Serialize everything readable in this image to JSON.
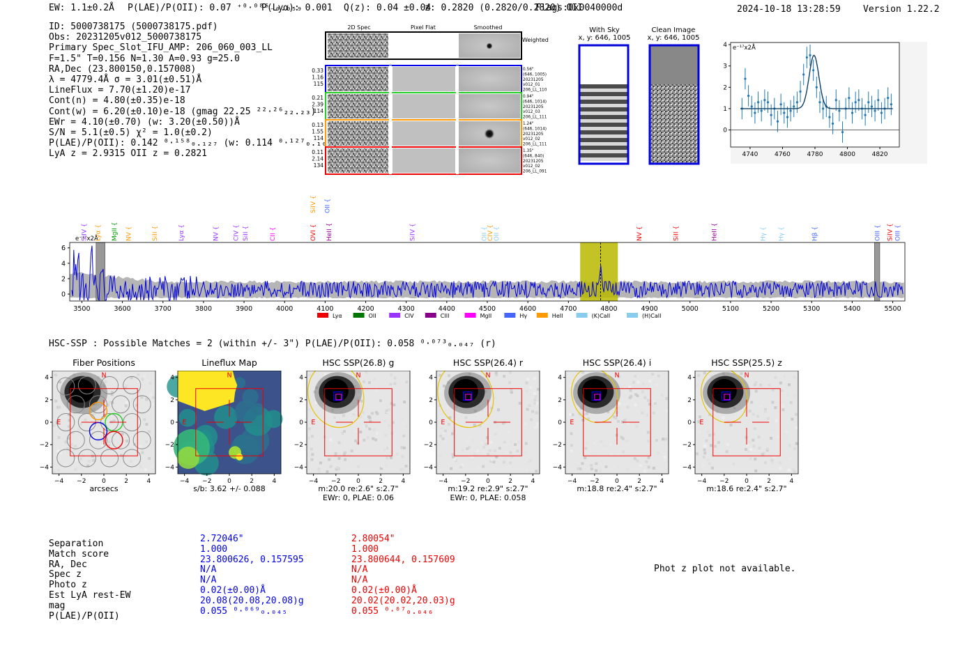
{
  "header": {
    "ew": "EW: 1.1±0.2Å",
    "plae": "P(LAE)/P(OII): 0.07 ⁺⁰·⁰⁸⁶₋₀.₀₅₉",
    "plya": "P(Lyα): 0.001",
    "qz": "Q(z): 0.04 ±0.04",
    "z": "z: 0.2820 (0.2820/0.2820) OII",
    "flags": "Flags:0x0040000d",
    "timestamp": "2024-10-18 13:28:59",
    "version": "Version 1.22.2"
  },
  "info_lines": [
    "ID: 5000738175 (5000738175.pdf)",
    "Obs: 20231205v012_5000738175",
    "Primary Spec_Slot_IFU_AMP: 206_060_003_LL",
    "F=1.5\"  T=0.156  N=1.30  A=0.93  g=25.0",
    "RA,Dec (23.800150,0.157008)",
    "λ = 4779.4Å   σ = 3.01(±0.51)Å",
    "LineFlux = 7.70(±1.20)e-17",
    "Cont(n) = 4.80(±0.35)e-18",
    "Cont(w) = 6.20(±0.10)e-18 (gmag 22.25 ²²·²⁶₂₂.₂₃)",
    "EWr = 4.10(±0.70) (w: 3.20(±0.50))Å",
    "S/N = 5.1(±0.5)  χ² = 1.0(±0.2)",
    "P(LAE)/P(OII): 0.142 ⁰·¹⁵⁸₀.₁₂₇ (w: 0.114 ⁰·¹²⁷₀.₁₀₄)",
    "LyA z = 2.9315   OII z = 0.2821"
  ],
  "cutout_panel": {
    "col_titles": [
      "2D Spec",
      "Pixel Flat",
      "Smoothed"
    ],
    "weighted_sum_label": "Weighted Sum",
    "rows": [
      {
        "left": [
          "0.33",
          "1.16",
          "115"
        ],
        "right": [
          "0.56\"",
          "(646, 1005)",
          "20231205",
          "v012_01",
          "206_LL_110"
        ],
        "color": "#0000ee"
      },
      {
        "left": [
          "0.21",
          "2.39",
          "114"
        ],
        "right": [
          "0.94\"",
          "(646, 1014)",
          "20231205",
          "v012_03",
          "206_LL_111"
        ],
        "color": "#22cc22"
      },
      {
        "left": [
          "0.13",
          "1.55",
          "114"
        ],
        "right": [
          "1.24\"",
          "(646, 1014)",
          "20231205",
          "v012_02",
          "206_LL_111"
        ],
        "color": "#ff9900"
      },
      {
        "left": [
          "0.11",
          "2.14",
          "134"
        ],
        "right": [
          "1.35\"",
          "(646, 840)",
          "20231205",
          "v012_02",
          "206_LL_091"
        ],
        "color": "#ee0000"
      }
    ]
  },
  "sky_panels": {
    "with_sky_title": "With Sky",
    "with_sky_coords": "x, y: 646, 1005",
    "clean_title": "Clean Image",
    "clean_coords": "x, y: 646, 1005"
  },
  "zoom_chart": {
    "chart_data": {
      "type": "line",
      "title": "",
      "ylabel_note": "e⁻¹⁷x2Å",
      "xlim": [
        4728,
        4832
      ],
      "ylim": [
        -0.8,
        4.1
      ],
      "xticks": [
        4740,
        4760,
        4780,
        4800,
        4820
      ],
      "yticks": [
        0,
        1,
        2,
        3,
        4
      ],
      "points_x": [
        4735,
        4737,
        4739,
        4741,
        4743,
        4745,
        4747,
        4749,
        4751,
        4753,
        4755,
        4757,
        4759,
        4761,
        4763,
        4765,
        4767,
        4769,
        4771,
        4773,
        4775,
        4777,
        4779,
        4781,
        4783,
        4785,
        4787,
        4789,
        4791,
        4793,
        4795,
        4797,
        4799,
        4801,
        4803,
        4805,
        4807,
        4809,
        4811,
        4813,
        4815,
        4817,
        4819,
        4821,
        4823,
        4825,
        4827
      ],
      "points_y": [
        1.0,
        2.4,
        1.6,
        1.1,
        0.8,
        1.3,
        0.9,
        1.4,
        1.3,
        0.7,
        1.0,
        0.4,
        1.2,
        0.8,
        0.6,
        0.9,
        1.1,
        1.3,
        1.8,
        2.6,
        3.4,
        3.5,
        2.8,
        2.0,
        1.3,
        1.0,
        1.1,
        0.6,
        0.3,
        1.4,
        0.9,
        -0.1,
        1.0,
        1.5,
        0.8,
        1.3,
        1.4,
        1.0,
        0.7,
        1.3,
        1.1,
        0.9,
        1.4,
        0.8,
        1.0,
        1.5,
        1.2
      ],
      "err": 0.5,
      "fit": {
        "continuum": 1.0,
        "amplitude": 2.5,
        "center": 4779.4,
        "sigma": 3.01
      }
    }
  },
  "spectrum_chart": {
    "chart_data": {
      "type": "line",
      "ylabel_note": "e⁻¹⁷x2Å",
      "xlim": [
        3470,
        5530
      ],
      "ylim": [
        -0.9,
        6.7
      ],
      "xticks": [
        3500,
        3600,
        3700,
        3800,
        3900,
        4000,
        4100,
        4200,
        4300,
        4400,
        4500,
        4600,
        4700,
        4800,
        4900,
        5000,
        5100,
        5200,
        5300,
        5400,
        5500
      ],
      "yticks": [
        0,
        2,
        4,
        6
      ],
      "highlight_range": [
        4729,
        4822
      ],
      "line_center": 4779.4,
      "masked_ranges": [
        [
          3535,
          3557
        ],
        [
          5455,
          5468
        ]
      ],
      "line_labels": [
        {
          "name": "SiIV",
          "w": 3505,
          "color": "#9933ff",
          "row": 0
        },
        {
          "name": "Lyα",
          "w": 3540,
          "color": "#ff9900",
          "row": 0
        },
        {
          "name": "MgII",
          "w": 3580,
          "color": "#009900",
          "row": 0
        },
        {
          "name": "NV",
          "w": 3615,
          "color": "#ff9900",
          "row": 0
        },
        {
          "name": "SiII",
          "w": 3680,
          "color": "#ff9900",
          "row": 0
        },
        {
          "name": "Lyα",
          "w": 3745,
          "color": "#9933ff",
          "row": 0
        },
        {
          "name": "NV",
          "w": 3830,
          "color": "#9933ff",
          "row": 0
        },
        {
          "name": "CIV",
          "w": 3880,
          "color": "#9933ff",
          "row": 0
        },
        {
          "name": "SiII",
          "w": 3903,
          "color": "#9933ff",
          "row": 0
        },
        {
          "name": "CII",
          "w": 3970,
          "color": "#ff00ff",
          "row": 0
        },
        {
          "name": "OVI",
          "w": 4070,
          "color": "#ee0000",
          "row": 0
        },
        {
          "name": "HeII",
          "w": 4110,
          "color": "#990099",
          "row": 0
        },
        {
          "name": "SiIV",
          "w": 4070,
          "color": "#ff9900",
          "row": 1
        },
        {
          "name": "OII",
          "w": 4105,
          "color": "#4466ff",
          "row": 1
        },
        {
          "name": "SiIV",
          "w": 4315,
          "color": "#9933ff",
          "row": 0
        },
        {
          "name": "OII",
          "w": 4492,
          "color": "#88ccee",
          "row": 0
        },
        {
          "name": "CIV",
          "w": 4507,
          "color": "#ff9900",
          "row": 0
        },
        {
          "name": "OII",
          "w": 4522,
          "color": "#88ccee",
          "row": 0
        },
        {
          "name": "NV",
          "w": 4875,
          "color": "#ee0000",
          "row": 0
        },
        {
          "name": "SiII",
          "w": 4965,
          "color": "#ee0000",
          "row": 0
        },
        {
          "name": "HeII",
          "w": 5060,
          "color": "#990099",
          "row": 0
        },
        {
          "name": "Hγ",
          "w": 5180,
          "color": "#88ccee",
          "row": 0
        },
        {
          "name": "Hγ",
          "w": 5225,
          "color": "#88ccee",
          "row": 0
        },
        {
          "name": "Hβ",
          "w": 5307,
          "color": "#4466ff",
          "row": 0
        },
        {
          "name": "OIII",
          "w": 5462,
          "color": "#4466ff",
          "row": 0
        },
        {
          "name": "SiIV",
          "w": 5493,
          "color": "#ee0000",
          "row": 0
        },
        {
          "name": "OIII",
          "w": 5512,
          "color": "#4466ff",
          "row": 0
        }
      ],
      "legend": [
        {
          "name": "Lyα",
          "color": "#ee0000"
        },
        {
          "name": "OII",
          "color": "#007700"
        },
        {
          "name": "CIV",
          "color": "#9933ff"
        },
        {
          "name": "CIII",
          "color": "#880088"
        },
        {
          "name": "MgII",
          "color": "#ff00ff"
        },
        {
          "name": "Hγ",
          "color": "#4466ff"
        },
        {
          "name": "HeII",
          "color": "#ff9900"
        },
        {
          "name": "(K)CaII",
          "color": "#88ccee"
        },
        {
          "name": "(H)CaII",
          "color": "#88ccee"
        }
      ]
    }
  },
  "hsc_header": {
    "text": "HSC-SSP : Possible Matches = 2 (within +/- 3\")  P(LAE)/P(OII): 0.058 ⁰·⁰⁷³₀.₀₄₇ (r)"
  },
  "image_panels": [
    {
      "title": "Fiber Positions",
      "caption1": "arcsecs",
      "caption2": ""
    },
    {
      "title": "Lineflux Map",
      "caption1": "s/b: 3.62 +/- 0.088",
      "caption2": ""
    },
    {
      "title": "HSC SSP(26.8) g",
      "caption1": "m:20.0  re:2.6\"  s:2.7\"",
      "caption2": "EWr: 0, PLAE: 0.06"
    },
    {
      "title": "HSC SSP(26.4) r",
      "caption1": "m:19.2  re:2.9\"  s:2.7\"",
      "caption2": "EWr: 0, PLAE: 0.058"
    },
    {
      "title": "HSC SSP(26.4) i",
      "caption1": "m:18.8  re:2.4\"  s:2.7\"",
      "caption2": ""
    },
    {
      "title": "HSC SSP(25.5) z",
      "caption1": "m:18.6  re:2.4\"  s:2.7\"",
      "caption2": ""
    }
  ],
  "compass": {
    "north": "N",
    "east": "E"
  },
  "image_axis": {
    "xticks": [
      "−4",
      "−2",
      "0",
      "2",
      "4"
    ],
    "yticks": [
      "4",
      "2",
      "0",
      "−2",
      "−4"
    ]
  },
  "match_table": {
    "labels": [
      "Separation",
      "Match score",
      "RA, Dec",
      "Spec z",
      "Photo z",
      "Est LyA rest-EW",
      "mag",
      "P(LAE)/P(OII)"
    ],
    "col1": [
      "2.72046\"",
      "1.000",
      "23.800626, 0.157595",
      "N/A",
      "N/A",
      "0.02(±0.00)Å",
      "20.08(20.08,20.08)g",
      "0.055 ⁰·⁰⁶⁹₀.₀₄₅"
    ],
    "col2": [
      "2.80054\"",
      "1.000",
      "23.800644, 0.157609",
      "N/A",
      "N/A",
      "0.02(±0.00)Å",
      "20.02(20.02,20.03)g",
      "0.055 ⁰·⁰⁷₀.₀₄₆"
    ]
  },
  "phot_z_note": "Phot z plot not available."
}
